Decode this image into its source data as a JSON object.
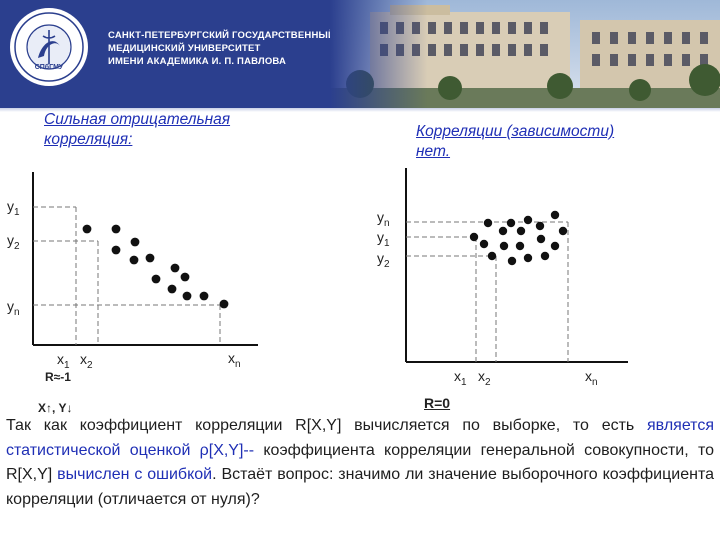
{
  "header": {
    "logo_text": "МЕДИЦИНСКАЯ НОВЕЛЛА 1897 СПбГМУ",
    "university_lines": [
      "САНКТ-ПЕТЕРБУРГСКИЙ ГОСУДАРСТВЕННЫЙ",
      "МЕДИЦИНСКИЙ УНИВЕРСИТЕТ",
      "ИМЕНИ АКАДЕМИКА И. П. ПАВЛОВА"
    ]
  },
  "left_plot": {
    "title": [
      "Сильная отрицательная",
      "корреляция:"
    ],
    "y_labels": [
      {
        "base": "y",
        "sub": "1"
      },
      {
        "base": "y",
        "sub": "2"
      },
      {
        "base": "y",
        "sub": "n"
      }
    ],
    "x_labels": [
      {
        "base": "x",
        "sub": "1"
      },
      {
        "base": "x",
        "sub": "2"
      },
      {
        "base": "x",
        "sub": "n"
      }
    ],
    "r_label": "R≈-1",
    "trend_label": "X↑,  Y↓"
  },
  "right_plot": {
    "title": [
      "Корреляции (зависимости)",
      "нет."
    ],
    "y_labels": [
      {
        "base": "y",
        "sub": "n"
      },
      {
        "base": "y",
        "sub": "1"
      },
      {
        "base": "y",
        "sub": "2"
      }
    ],
    "x_labels": [
      {
        "base": "x",
        "sub": "1"
      },
      {
        "base": "x",
        "sub": "2"
      },
      {
        "base": "x",
        "sub": "n"
      }
    ],
    "r_label": "R=0"
  },
  "paragraph": {
    "p1": "Так как коэффициент корреляции R[X,Y] вычисляется по выборке, то есть ",
    "p2": "является статистической оценкой  ρ[X,Y]--",
    "p3": "  коэффициента корреляции генеральной совокупности, то  R[X,Y] ",
    "p4": "вычислен с ошибкой",
    "p5": ". Встаёт вопрос: значимо ли значение выборочного коэффициента корреляции (отличается от нуля)?"
  },
  "colors": {
    "header_bg": "#2b3f8e",
    "title_blue": "#1f2fb5",
    "point": "#111111",
    "guide": "#777777"
  }
}
